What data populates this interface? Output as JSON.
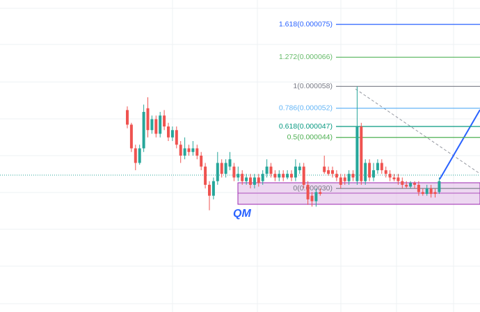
{
  "chart_data": {
    "type": "candlestick",
    "open": [
      5.15e-05,
      4.75e-05,
      4.1e-05,
      3.7e-05,
      4.1e-05,
      5.2e-05,
      4.6e-05,
      4.9e-05,
      4.5e-05,
      5e-05,
      4.7e-05,
      4.4e-05,
      4.6e-05,
      4.2e-05,
      3.9e-05,
      4.1e-05,
      4e-05,
      4.1e-05,
      3.9e-05,
      3.6e-05,
      3.1e-05,
      2.8e-05,
      3.2e-05,
      3.7e-05,
      3.4e-05,
      3.6e-05,
      3.6e-05,
      3.3e-05,
      3.4e-05,
      3.2e-05,
      3.3e-05,
      3.1e-05,
      3.3e-05,
      3.2e-05,
      3.4e-05,
      3.6e-05,
      3.4e-05,
      3.3e-05,
      3.4e-05,
      3.3e-05,
      3.4e-05,
      3.3e-05,
      3.5e-05,
      3.6e-05,
      3.1e-05,
      2.8e-05,
      2.65e-05,
      2.9e-05,
      3.6e-05,
      3.5e-05,
      3.5e-05,
      3.4e-05,
      3.3e-05,
      3.3e-05,
      3.2e-05,
      3.4e-05,
      3.2e-05,
      4.7e-05,
      3.2e-05,
      3.7e-05,
      3.3e-05,
      3.5e-05,
      3.7e-05,
      3.5e-05,
      3.4e-05,
      3.3e-05,
      3.3e-05,
      3.2e-05,
      3.1e-05,
      3.05e-05,
      3.15e-05,
      3.1e-05,
      2.9e-05,
      2.85e-05,
      3e-05,
      2.9e-05,
      2.9e-05
    ],
    "close": [
      4.75e-05,
      4.1e-05,
      3.7e-05,
      4.1e-05,
      5.1e-05,
      4.6e-05,
      4.9e-05,
      4.5e-05,
      5e-05,
      4.7e-05,
      4.4e-05,
      4.6e-05,
      4.2e-05,
      3.9e-05,
      4.1e-05,
      4e-05,
      4.1e-05,
      3.9e-05,
      3.6e-05,
      3.1e-05,
      2.8e-05,
      3.2e-05,
      3.7e-05,
      3.4e-05,
      3.7e-05,
      3.8e-05,
      3.3e-05,
      3.4e-05,
      3.2e-05,
      3.3e-05,
      3.1e-05,
      3.3e-05,
      3.15e-05,
      3.4e-05,
      3.6e-05,
      3.4e-05,
      3.3e-05,
      3.4e-05,
      3.3e-05,
      3.4e-05,
      3.3e-05,
      3.6e-05,
      3.6e-05,
      3.1e-05,
      2.7e-05,
      2.65e-05,
      2.9e-05,
      2.85e-05,
      3.45e-05,
      3.4e-05,
      3.4e-05,
      3.3e-05,
      3.1e-05,
      3.2e-05,
      3.4e-05,
      3.3e-05,
      4.7e-05,
      3.2e-05,
      3.7e-05,
      3.3e-05,
      3.5e-05,
      3.7e-05,
      3.5e-05,
      3.4e-05,
      3.3e-05,
      3.25e-05,
      3.2e-05,
      3.1e-05,
      3.05e-05,
      3.15e-05,
      3.1e-05,
      2.9e-05,
      2.85e-05,
      3e-05,
      2.85e-05,
      2.85e-05,
      3.2e-05
    ],
    "high": [
      5.25e-05,
      4.8e-05,
      4.2e-05,
      4.2e-05,
      5.3e-05,
      5.5e-05,
      5e-05,
      5e-05,
      5.1e-05,
      5.15e-05,
      4.8e-05,
      4.7e-05,
      4.7e-05,
      4.3e-05,
      4.4e-05,
      4.2e-05,
      4.3e-05,
      4.2e-05,
      4e-05,
      3.7e-05,
      3.2e-05,
      3.3e-05,
      4e-05,
      3.8e-05,
      3.8e-05,
      4e-05,
      3.7e-05,
      3.6e-05,
      3.5e-05,
      3.4e-05,
      3.4e-05,
      3.4e-05,
      3.4e-05,
      3.5e-05,
      3.8e-05,
      3.7e-05,
      3.5e-05,
      3.5e-05,
      3.5e-05,
      3.5e-05,
      3.5e-05,
      3.8e-05,
      3.7e-05,
      3.7e-05,
      3.2e-05,
      2.9e-05,
      3e-05,
      3e-05,
      3.9e-05,
      3.6e-05,
      3.6e-05,
      3.5e-05,
      3.4e-05,
      3.4e-05,
      3.5e-05,
      3.5e-05,
      5.8e-05,
      4.8e-05,
      3.8e-05,
      3.8e-05,
      3.7e-05,
      3.8e-05,
      3.8e-05,
      3.6e-05,
      3.5e-05,
      3.4e-05,
      3.4e-05,
      3.3e-05,
      3.2e-05,
      3.2e-05,
      3.2e-05,
      3.2e-05,
      3e-05,
      3.1e-05,
      3.1e-05,
      3e-05,
      3.3e-05
    ],
    "low": [
      4.65e-05,
      4e-05,
      3.5e-05,
      3.65e-05,
      4e-05,
      4.4e-05,
      4.5e-05,
      4.4e-05,
      4.4e-05,
      4.6e-05,
      4.3e-05,
      4.3e-05,
      4.1e-05,
      3.7e-05,
      3.8e-05,
      3.9e-05,
      3.9e-05,
      3.8e-05,
      3.5e-05,
      3e-05,
      2.4e-05,
      2.7e-05,
      3.1e-05,
      3.3e-05,
      3.3e-05,
      3.5e-05,
      3.2e-05,
      3.2e-05,
      3.1e-05,
      3.1e-05,
      3e-05,
      3e-05,
      3.05e-05,
      3.1e-05,
      3.3e-05,
      3.3e-05,
      3.2e-05,
      3.2e-05,
      3.2e-05,
      3.25e-05,
      3.2e-05,
      3.2e-05,
      3.4e-05,
      3e-05,
      2.55e-05,
      2.5e-05,
      2.5e-05,
      2.8e-05,
      3.4e-05,
      3.35e-05,
      3.3e-05,
      3.2e-05,
      3e-05,
      3.1e-05,
      3.1e-05,
      3.2e-05,
      3.1e-05,
      3.1e-05,
      3.1e-05,
      3.2e-05,
      3.2e-05,
      3.4e-05,
      3.4e-05,
      3.3e-05,
      3.2e-05,
      3.2e-05,
      3.1e-05,
      3e-05,
      3e-05,
      3e-05,
      3e-05,
      2.8e-05,
      2.8e-05,
      2.8e-05,
      2.75e-05,
      2.75e-05,
      2.85e-05
    ],
    "up_color": "#26a69a",
    "down_color": "#ef5350",
    "ylim": [
      -3.9e-06,
      8.17e-05
    ],
    "fib_levels": [
      {
        "label": "1.618(0.000075)",
        "value": 7.5e-05,
        "color": "#2962ff"
      },
      {
        "label": "1.272(0.000066)",
        "value": 6.6e-05,
        "color": "#66bb6a"
      },
      {
        "label": "1(0.000058)",
        "value": 5.8e-05,
        "color": "#787b86"
      },
      {
        "label": "0.786(0.000052)",
        "value": 5.2e-05,
        "color": "#64b5f6"
      },
      {
        "label": "0.618(0.000047)",
        "value": 4.7e-05,
        "color": "#089981"
      },
      {
        "label": "0.5(0.000044)",
        "value": 4.4e-05,
        "color": "#4caf50"
      },
      {
        "label": "0(0.000030)",
        "value": 3e-05,
        "color": "#787b86"
      }
    ],
    "annotation": "QM"
  }
}
